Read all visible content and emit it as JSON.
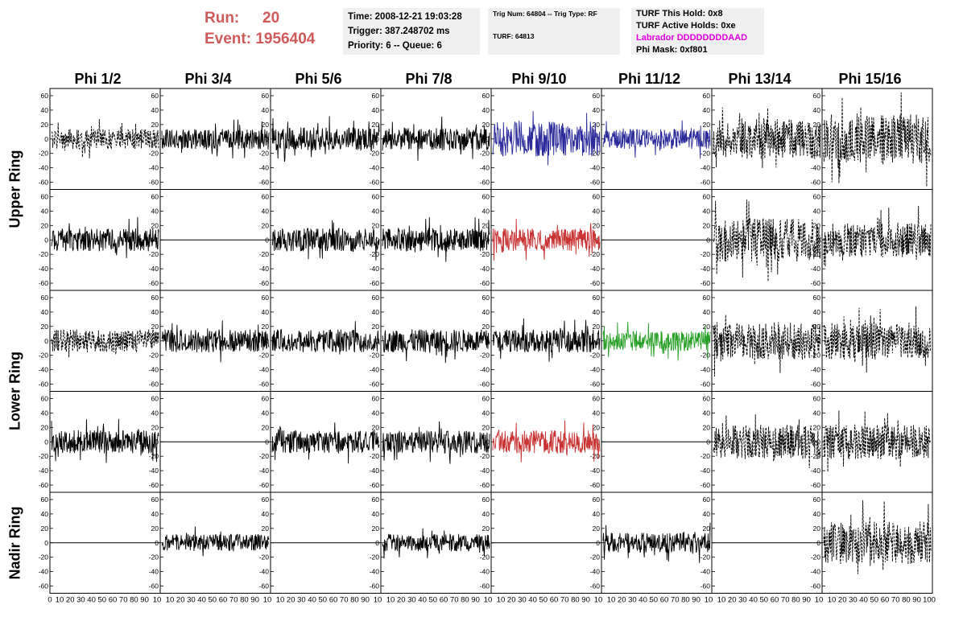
{
  "header": {
    "run_label": "Run:",
    "run_value": "20",
    "event_label": "Event:",
    "event_value": "1956404",
    "time": "Time: 2008-12-21 19:03:28",
    "trigger": "Trigger: 387.248702 ms",
    "priority": "Priority: 6 -- Queue: 6",
    "trig_num": "Trig Num: 64804 -- Trig Type: RF",
    "turf": "TURF: 64813",
    "turf_hold": "TURF This Hold: 0x8",
    "turf_active": "TURF Active Holds: 0xe",
    "labrador": "Labrador DDDDDDDDAAD",
    "phi_mask": "Phi Mask: 0xf801"
  },
  "colors": {
    "run_text": "#d05a5a",
    "labrador": "#e000e0",
    "blue": "#2a2a9a",
    "red": "#c83232",
    "green": "#28a028"
  },
  "columns": [
    "Phi 1/2",
    "Phi 3/4",
    "Phi 5/6",
    "Phi 7/8",
    "Phi 9/10",
    "Phi 11/12",
    "Phi 13/14",
    "Phi 15/16"
  ],
  "rows": [
    "Upper Ring",
    "Lower Ring",
    "Nadir Ring"
  ],
  "axes": {
    "y_ticks": [
      "60",
      "40",
      "20",
      "0",
      "-20",
      "-40",
      "-60"
    ],
    "x_tick_text_mid": "10 20 30 40 50 60 70 80 90 10",
    "x_tick_text_first": "0  10 20 30 40 50 60 70 80 90 10",
    "x_tick_text_last": "10 20 30 40 50 60 70 80 90 100"
  },
  "chart_data": {
    "type": "line",
    "ylim": [
      -70,
      70
    ],
    "xlim": [
      0,
      100
    ],
    "panels": [
      {
        "row": 0,
        "col": 0,
        "style": "dashed",
        "color": "#000000",
        "amp": 14
      },
      {
        "row": 0,
        "col": 1,
        "style": "solid",
        "color": "#000000",
        "amp": 14
      },
      {
        "row": 0,
        "col": 2,
        "style": "solid",
        "color": "#000000",
        "amp": 16
      },
      {
        "row": 0,
        "col": 3,
        "style": "solid",
        "color": "#000000",
        "amp": 16
      },
      {
        "row": 0,
        "col": 4,
        "style": "solid",
        "color": "#2a2a9a",
        "amp": 24
      },
      {
        "row": 0,
        "col": 5,
        "style": "solid",
        "color": "#2a2a9a",
        "amp": 14
      },
      {
        "row": 0,
        "col": 6,
        "style": "dashed",
        "color": "#000000",
        "amp": 28
      },
      {
        "row": 0,
        "col": 7,
        "style": "dashed",
        "color": "#000000",
        "amp": 34
      },
      {
        "row": 1,
        "col": 0,
        "style": "solid",
        "color": "#000000",
        "amp": 16
      },
      {
        "row": 1,
        "col": 1,
        "style": "flat",
        "color": "#000000",
        "amp": 0
      },
      {
        "row": 1,
        "col": 2,
        "style": "solid",
        "color": "#000000",
        "amp": 16
      },
      {
        "row": 1,
        "col": 3,
        "style": "solid",
        "color": "#000000",
        "amp": 16
      },
      {
        "row": 1,
        "col": 4,
        "style": "solid",
        "color": "#c83232",
        "amp": 16
      },
      {
        "row": 1,
        "col": 5,
        "style": "flat",
        "color": "#000000",
        "amp": 0
      },
      {
        "row": 1,
        "col": 6,
        "style": "dashed",
        "color": "#000000",
        "amp": 30
      },
      {
        "row": 1,
        "col": 7,
        "style": "dashed",
        "color": "#000000",
        "amp": 24
      },
      {
        "row": 2,
        "col": 0,
        "style": "dashed",
        "color": "#000000",
        "amp": 16
      },
      {
        "row": 2,
        "col": 1,
        "style": "solid",
        "color": "#000000",
        "amp": 16
      },
      {
        "row": 2,
        "col": 2,
        "style": "solid",
        "color": "#000000",
        "amp": 16
      },
      {
        "row": 2,
        "col": 3,
        "style": "solid",
        "color": "#000000",
        "amp": 16
      },
      {
        "row": 2,
        "col": 4,
        "style": "solid",
        "color": "#000000",
        "amp": 16
      },
      {
        "row": 2,
        "col": 5,
        "style": "solid",
        "color": "#28a028",
        "amp": 14
      },
      {
        "row": 2,
        "col": 6,
        "style": "dashed",
        "color": "#000000",
        "amp": 26
      },
      {
        "row": 2,
        "col": 7,
        "style": "dashed",
        "color": "#000000",
        "amp": 26
      },
      {
        "row": 3,
        "col": 0,
        "style": "solid",
        "color": "#000000",
        "amp": 16
      },
      {
        "row": 3,
        "col": 1,
        "style": "flat",
        "color": "#000000",
        "amp": 0
      },
      {
        "row": 3,
        "col": 2,
        "style": "solid",
        "color": "#000000",
        "amp": 16
      },
      {
        "row": 3,
        "col": 3,
        "style": "solid",
        "color": "#000000",
        "amp": 16
      },
      {
        "row": 3,
        "col": 4,
        "style": "solid",
        "color": "#c83232",
        "amp": 16
      },
      {
        "row": 3,
        "col": 5,
        "style": "flat",
        "color": "#000000",
        "amp": 0
      },
      {
        "row": 3,
        "col": 6,
        "style": "dashed",
        "color": "#000000",
        "amp": 24
      },
      {
        "row": 3,
        "col": 7,
        "style": "dashed",
        "color": "#000000",
        "amp": 24
      },
      {
        "row": 4,
        "col": 0,
        "style": "flat",
        "color": "#000000",
        "amp": 0
      },
      {
        "row": 4,
        "col": 1,
        "style": "solid",
        "color": "#000000",
        "amp": 12
      },
      {
        "row": 4,
        "col": 2,
        "style": "flat",
        "color": "#000000",
        "amp": 0
      },
      {
        "row": 4,
        "col": 3,
        "style": "solid",
        "color": "#000000",
        "amp": 12
      },
      {
        "row": 4,
        "col": 4,
        "style": "flat",
        "color": "#000000",
        "amp": 0
      },
      {
        "row": 4,
        "col": 5,
        "style": "solid",
        "color": "#000000",
        "amp": 14
      },
      {
        "row": 4,
        "col": 6,
        "style": "flat",
        "color": "#000000",
        "amp": 0
      },
      {
        "row": 4,
        "col": 7,
        "style": "dashed",
        "color": "#000000",
        "amp": 30
      }
    ]
  }
}
